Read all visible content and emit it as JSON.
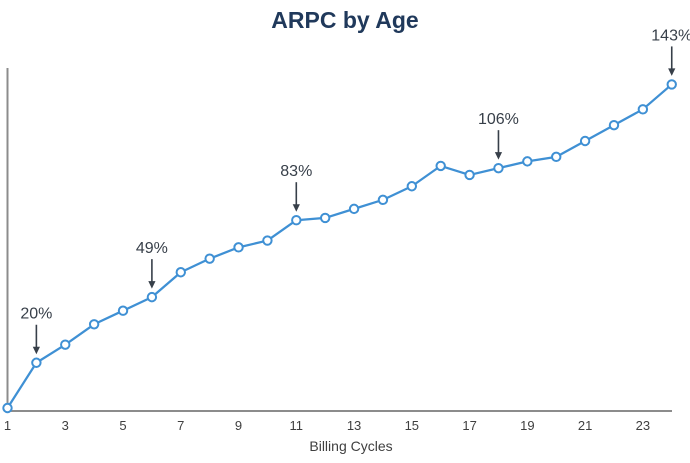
{
  "chart_data": {
    "type": "line",
    "title": "ARPC by Age",
    "xlabel": "Billing Cycles",
    "ylabel": "",
    "unit": "%",
    "x": [
      1,
      2,
      3,
      4,
      5,
      6,
      7,
      8,
      9,
      10,
      11,
      12,
      13,
      14,
      15,
      16,
      17,
      18,
      19,
      20,
      21,
      22,
      23,
      24
    ],
    "values": [
      0,
      20,
      28,
      37,
      43,
      49,
      60,
      66,
      71,
      74,
      83,
      84,
      88,
      92,
      98,
      107,
      103,
      106,
      109,
      111,
      118,
      125,
      132,
      143
    ],
    "x_ticks": [
      1,
      3,
      5,
      7,
      9,
      11,
      13,
      15,
      17,
      19,
      21,
      23
    ],
    "ylim": [
      0,
      153
    ],
    "grid": false,
    "legend": "none",
    "y_axis_labels_visible": false,
    "annotations": [
      {
        "x": 2,
        "label": "20%"
      },
      {
        "x": 6,
        "label": "49%"
      },
      {
        "x": 11,
        "label": "83%"
      },
      {
        "x": 18,
        "label": "106%"
      },
      {
        "x": 24,
        "label": "143%"
      }
    ],
    "colors": {
      "line": "#3F90D4",
      "marker_fill": "#FFFFFF",
      "title": "#20395B",
      "annotation": "#373F49",
      "axis": "#8C8C8C",
      "tick_text": "#3F3F3F"
    }
  }
}
